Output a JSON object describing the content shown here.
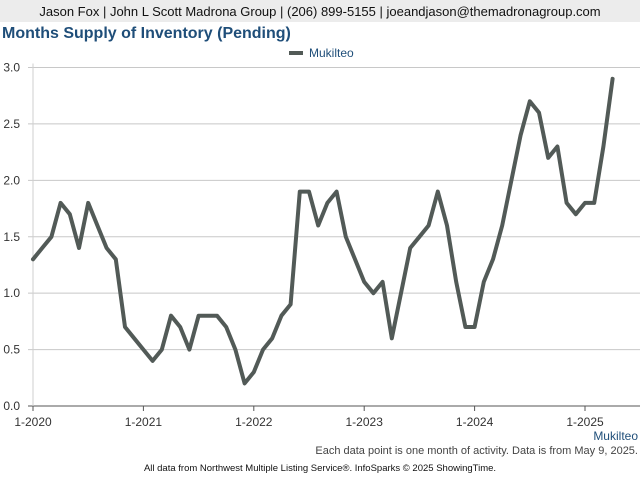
{
  "header": {
    "contact": "Jason Fox | John L Scott Madrona Group | (206) 899-5155 | joeandjason@themadronagroup.com"
  },
  "colors": {
    "series_line": "#525a57",
    "title": "#1f4e79",
    "gridline": "#c8c8c8"
  },
  "chart_data": {
    "type": "line",
    "title": "Months Supply of Inventory (Pending)",
    "xlabel": "",
    "ylabel": "",
    "x_tick_labels": [
      "1-2020",
      "1-2021",
      "1-2022",
      "1-2023",
      "1-2024",
      "1-2025"
    ],
    "y_tick_labels": [
      "0.0",
      "0.5",
      "1.0",
      "1.5",
      "2.0",
      "2.5",
      "3.0"
    ],
    "ylim": [
      0,
      3.0
    ],
    "x_start": "2020-01",
    "x_end": "2025-04",
    "grid": true,
    "legend_position": "top-center",
    "series": [
      {
        "name": "Mukilteo",
        "x": [
          "2020-01",
          "2020-02",
          "2020-03",
          "2020-04",
          "2020-05",
          "2020-06",
          "2020-07",
          "2020-08",
          "2020-09",
          "2020-10",
          "2020-11",
          "2020-12",
          "2021-01",
          "2021-02",
          "2021-03",
          "2021-04",
          "2021-05",
          "2021-06",
          "2021-07",
          "2021-08",
          "2021-09",
          "2021-10",
          "2021-11",
          "2021-12",
          "2022-01",
          "2022-02",
          "2022-03",
          "2022-04",
          "2022-05",
          "2022-06",
          "2022-07",
          "2022-08",
          "2022-09",
          "2022-10",
          "2022-11",
          "2022-12",
          "2023-01",
          "2023-02",
          "2023-03",
          "2023-04",
          "2023-05",
          "2023-06",
          "2023-07",
          "2023-08",
          "2023-09",
          "2023-10",
          "2023-11",
          "2023-12",
          "2024-01",
          "2024-02",
          "2024-03",
          "2024-04",
          "2024-05",
          "2024-06",
          "2024-07",
          "2024-08",
          "2024-09",
          "2024-10",
          "2024-11",
          "2024-12",
          "2025-01",
          "2025-02",
          "2025-03",
          "2025-04"
        ],
        "values": [
          1.3,
          1.4,
          1.5,
          1.8,
          1.7,
          1.4,
          1.8,
          1.6,
          1.4,
          1.3,
          0.7,
          0.6,
          0.5,
          0.4,
          0.5,
          0.8,
          0.7,
          0.5,
          0.8,
          0.8,
          0.8,
          0.7,
          0.5,
          0.2,
          0.3,
          0.5,
          0.6,
          0.8,
          0.9,
          1.9,
          1.9,
          1.6,
          1.8,
          1.9,
          1.5,
          1.3,
          1.1,
          1.0,
          1.1,
          0.6,
          1.0,
          1.4,
          1.5,
          1.6,
          1.9,
          1.6,
          1.1,
          0.7,
          0.7,
          1.1,
          1.3,
          1.6,
          2.0,
          2.4,
          2.7,
          2.6,
          2.2,
          2.3,
          1.8,
          1.7,
          1.8,
          1.8,
          2.3,
          2.9
        ]
      }
    ]
  },
  "footer": {
    "series_axis_label": "Mukilteo",
    "note": "Each data point is one month of activity. Data is from May 9, 2025.",
    "source": "All data from Northwest Multiple Listing Service®. InfoSparks © 2025 ShowingTime."
  }
}
